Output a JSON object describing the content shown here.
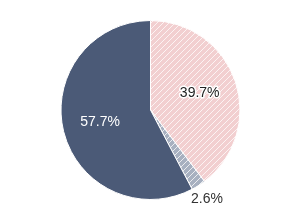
{
  "chart_data": {
    "type": "pie",
    "categories": [
      null,
      null,
      null
    ],
    "values": [
      39.7,
      2.6,
      57.7
    ],
    "value_labels": [
      "39.7%",
      "2.6%",
      "57.7%"
    ],
    "colors": [
      "#f2cfd0",
      "#a7b0c0",
      "#4b5a77"
    ],
    "data_labels": true,
    "legend": false
  }
}
